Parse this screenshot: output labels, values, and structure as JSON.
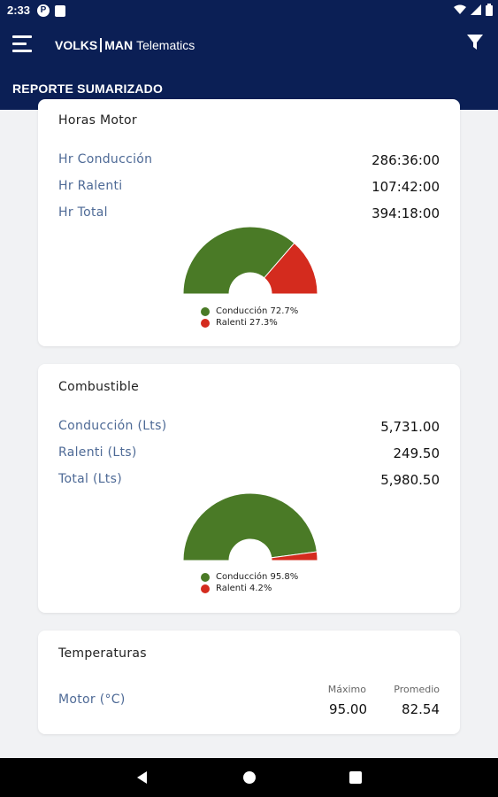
{
  "status_bar": {
    "time": "2:33",
    "p_badge": "P"
  },
  "app_bar": {
    "brand_part1": "VOLKS",
    "brand_part2": "MAN",
    "brand_part3": "Telematics",
    "subtitle": "REPORTE SUMARIZADO"
  },
  "colors": {
    "primary": "#0b1f55",
    "green": "#4a7a26",
    "red": "#d42b1e",
    "label": "#4e6a96"
  },
  "horas_motor": {
    "title": "Horas Motor",
    "rows": [
      {
        "label": "Hr Conducción",
        "value": "286:36:00"
      },
      {
        "label": "Hr Ralenti",
        "value": "107:42:00"
      },
      {
        "label": "Hr Total",
        "value": "394:18:00"
      }
    ],
    "legend": [
      {
        "label": "Conducción 72.7%",
        "color": "#4a7a26"
      },
      {
        "label": "Ralenti 27.3%",
        "color": "#d42b1e"
      }
    ],
    "gauge": [
      0.727,
      0.273
    ]
  },
  "combustible": {
    "title": "Combustible",
    "rows": [
      {
        "label": "Conducción (Lts)",
        "value": "5,731.00"
      },
      {
        "label": "Ralenti (Lts)",
        "value": "249.50"
      },
      {
        "label": "Total (Lts)",
        "value": "5,980.50"
      }
    ],
    "legend": [
      {
        "label": "Conducción 95.8%",
        "color": "#4a7a26"
      },
      {
        "label": "Ralenti 4.2%",
        "color": "#d42b1e"
      }
    ],
    "gauge": [
      0.958,
      0.042
    ]
  },
  "temperaturas": {
    "title": "Temperaturas",
    "row_label": "Motor (°C)",
    "max_label": "Máximo",
    "max_value": "95.00",
    "avg_label": "Promedio",
    "avg_value": "82.54"
  }
}
